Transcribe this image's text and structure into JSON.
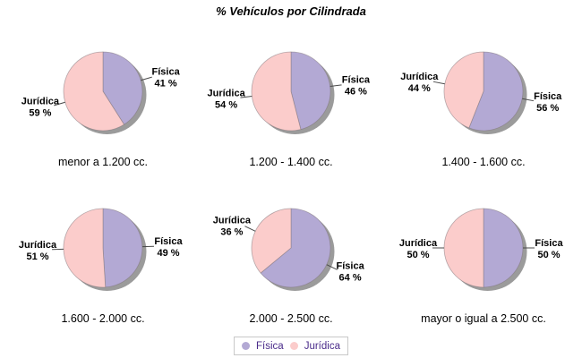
{
  "header": {
    "title": "% Vehículos por Cilindrada"
  },
  "legend": {
    "position": "bottom",
    "text_color": "#4A2B8A",
    "border_color": "#c8c8c8",
    "items": [
      {
        "label": "Física",
        "color": "#B3A9D4"
      },
      {
        "label": "Jurídica",
        "color": "#FBCCCB"
      }
    ]
  },
  "chart_data": [
    {
      "type": "pie",
      "title": "menor a 1.200 cc.",
      "unit": "%",
      "start_angle_deg": 0,
      "direction": "clockwise",
      "labels": [
        "Física",
        "Jurídica"
      ],
      "values": [
        41,
        59
      ],
      "colors": [
        "#B3A9D4",
        "#FBCCCB"
      ]
    },
    {
      "type": "pie",
      "title": "1.200 - 1.400 cc.",
      "unit": "%",
      "start_angle_deg": 0,
      "direction": "clockwise",
      "labels": [
        "Física",
        "Jurídica"
      ],
      "values": [
        46,
        54
      ],
      "colors": [
        "#B3A9D4",
        "#FBCCCB"
      ]
    },
    {
      "type": "pie",
      "title": "1.400 - 1.600 cc.",
      "unit": "%",
      "start_angle_deg": 0,
      "direction": "clockwise",
      "labels": [
        "Física",
        "Jurídica"
      ],
      "values": [
        56,
        44
      ],
      "colors": [
        "#B3A9D4",
        "#FBCCCB"
      ]
    },
    {
      "type": "pie",
      "title": "1.600 - 2.000 cc.",
      "unit": "%",
      "start_angle_deg": 0,
      "direction": "clockwise",
      "labels": [
        "Física",
        "Jurídica"
      ],
      "values": [
        49,
        51
      ],
      "colors": [
        "#B3A9D4",
        "#FBCCCB"
      ]
    },
    {
      "type": "pie",
      "title": "2.000 - 2.500 cc.",
      "unit": "%",
      "start_angle_deg": 0,
      "direction": "clockwise",
      "labels": [
        "Física",
        "Jurídica"
      ],
      "values": [
        64,
        36
      ],
      "colors": [
        "#B3A9D4",
        "#FBCCCB"
      ]
    },
    {
      "type": "pie",
      "title": "mayor o igual a 2.500 cc.",
      "unit": "%",
      "start_angle_deg": 0,
      "direction": "clockwise",
      "labels": [
        "Física",
        "Jurídica"
      ],
      "values": [
        50,
        50
      ],
      "colors": [
        "#B3A9D4",
        "#FBCCCB"
      ]
    }
  ]
}
